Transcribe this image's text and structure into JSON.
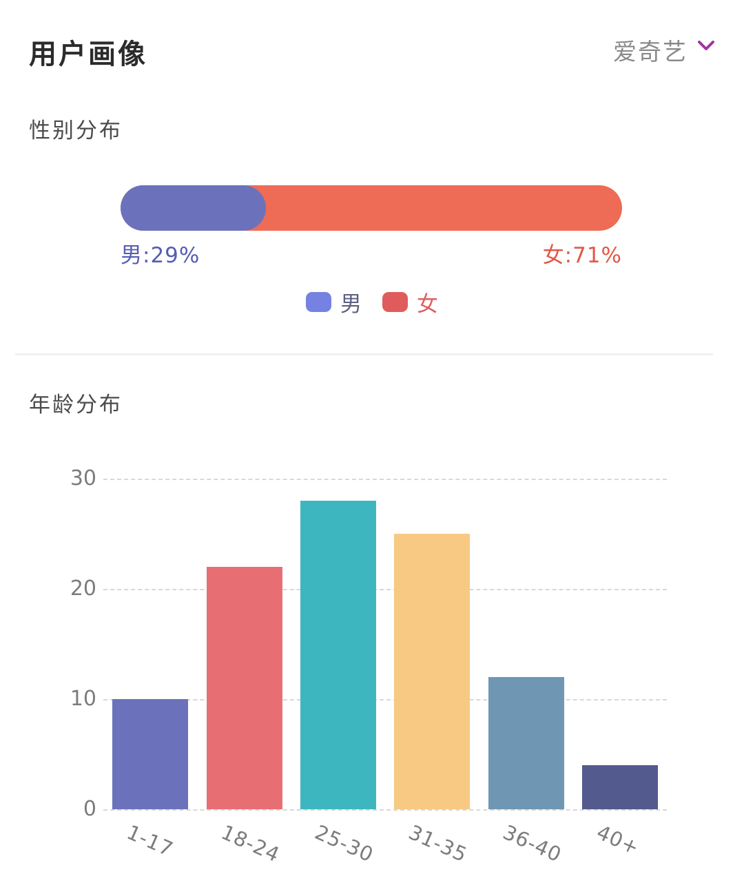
{
  "header": {
    "title": "用户画像",
    "source": "爱奇艺",
    "chevron_color": "#a233a2"
  },
  "chart_data": [
    {
      "id": "gender-distribution",
      "type": "bar",
      "subtype": "stacked-horizontal-pill",
      "title": "性别分布",
      "series": [
        {
          "name": "男",
          "value": 29,
          "unit": "%",
          "label": "男:29%",
          "color": "#6b72bb",
          "label_color": "#555cb3"
        },
        {
          "name": "女",
          "value": 71,
          "unit": "%",
          "label": "女:71%",
          "color": "#ee6b55",
          "label_color": "#e25746"
        }
      ],
      "legend": {
        "position": "bottom-center",
        "items": [
          {
            "name": "男",
            "swatch_color": "#7582e2",
            "text_color": "#5d6080"
          },
          {
            "name": "女",
            "swatch_color": "#e05c5c",
            "text_color": "#dd5f5f"
          }
        ]
      }
    },
    {
      "id": "age-distribution",
      "type": "bar",
      "title": "年龄分布",
      "categories": [
        "1-17",
        "18-24",
        "25-30",
        "31-35",
        "36-40",
        "40+"
      ],
      "values": [
        10,
        22,
        28,
        25,
        12,
        4
      ],
      "bar_colors": [
        "#6b72bb",
        "#e76f73",
        "#3eb6c0",
        "#f7c983",
        "#6f97b4",
        "#535a8d"
      ],
      "yticks": [
        30,
        20,
        10,
        0
      ],
      "ylim": [
        0,
        30
      ],
      "xlabel": "",
      "ylabel": "",
      "grid": "horizontal-dashed",
      "x_label_rotation_deg": 24,
      "axis_text_color": "#7c7c7c",
      "gridline_color": "#d8d8d8"
    }
  ]
}
